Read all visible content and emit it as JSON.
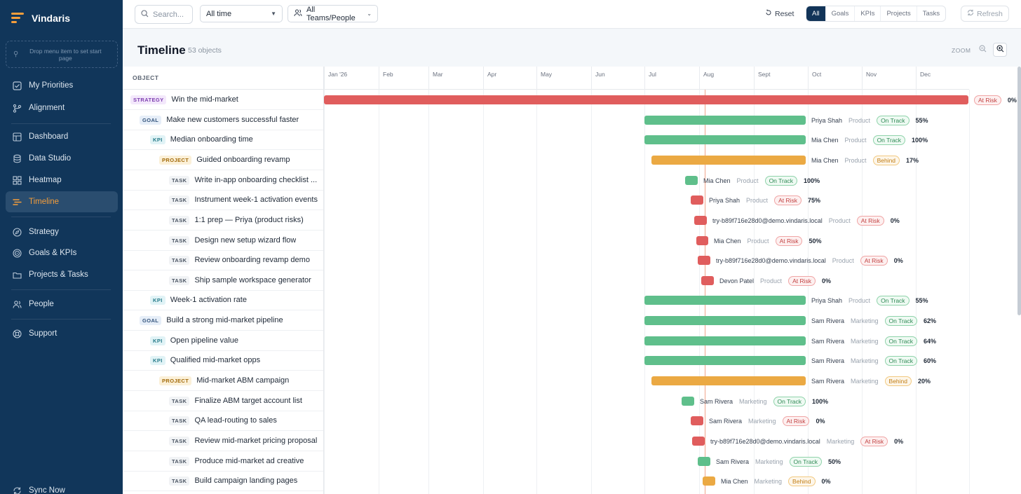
{
  "app": {
    "name": "Vindaris"
  },
  "sidebar": {
    "dropzone_text": "Drop menu item to set start page",
    "items": [
      {
        "label": "My Priorities",
        "icon": "checkbox-icon"
      },
      {
        "label": "Alignment",
        "icon": "branch-icon"
      },
      {
        "label": "Dashboard",
        "icon": "dashboard-icon"
      },
      {
        "label": "Data Studio",
        "icon": "database-icon"
      },
      {
        "label": "Heatmap",
        "icon": "grid-icon"
      },
      {
        "label": "Timeline",
        "icon": "timeline-icon"
      },
      {
        "label": "Strategy",
        "icon": "compass-icon"
      },
      {
        "label": "Goals & KPIs",
        "icon": "target-icon"
      },
      {
        "label": "Projects & Tasks",
        "icon": "folder-icon"
      },
      {
        "label": "People",
        "icon": "people-icon"
      },
      {
        "label": "Support",
        "icon": "support-icon"
      }
    ],
    "sync_label": "Sync Now"
  },
  "toolbar": {
    "search_placeholder": "Search...",
    "time_filter": "All time",
    "team_filter": "All Teams/People",
    "reset_label": "Reset",
    "filters": [
      "All",
      "Goals",
      "KPIs",
      "Projects",
      "Tasks"
    ],
    "active_filter": "All",
    "refresh_label": "Refresh"
  },
  "header": {
    "title": "Timeline",
    "count": "53 objects",
    "zoom_label": "ZOOM"
  },
  "table": {
    "object_header": "OBJECT",
    "months": [
      "Jan '26",
      "Feb",
      "Mar",
      "Apr",
      "May",
      "Jun",
      "Jul",
      "Aug",
      "Sept",
      "Oct",
      "Nov",
      "Dec"
    ],
    "rows": [
      {
        "type": "STRATEGY",
        "label": "Win the mid-market",
        "owner": "",
        "team": "",
        "status": "At Risk",
        "pct": "0%"
      },
      {
        "type": "GOAL",
        "label": "Make new customers successful faster",
        "owner": "Priya Shah",
        "team": "Product",
        "status": "On Track",
        "pct": "55%"
      },
      {
        "type": "KPI",
        "label": "Median onboarding time",
        "owner": "Mia Chen",
        "team": "Product",
        "status": "On Track",
        "pct": "100%"
      },
      {
        "type": "PROJECT",
        "label": "Guided onboarding revamp",
        "owner": "Mia Chen",
        "team": "Product",
        "status": "Behind",
        "pct": "17%"
      },
      {
        "type": "TASK",
        "label": "Write in-app onboarding checklist ...",
        "owner": "Mia Chen",
        "team": "Product",
        "status": "On Track",
        "pct": "100%"
      },
      {
        "type": "TASK",
        "label": "Instrument week-1 activation events",
        "owner": "Priya Shah",
        "team": "Product",
        "status": "At Risk",
        "pct": "75%"
      },
      {
        "type": "TASK",
        "label": "1:1 prep — Priya (product risks)",
        "owner": "try-b89f716e28d0@demo.vindaris.local",
        "team": "Product",
        "status": "At Risk",
        "pct": "0%"
      },
      {
        "type": "TASK",
        "label": "Design new setup wizard flow",
        "owner": "Mia Chen",
        "team": "Product",
        "status": "At Risk",
        "pct": "50%"
      },
      {
        "type": "TASK",
        "label": "Review onboarding revamp demo",
        "owner": "try-b89f716e28d0@demo.vindaris.local",
        "team": "Product",
        "status": "At Risk",
        "pct": "0%"
      },
      {
        "type": "TASK",
        "label": "Ship sample workspace generator",
        "owner": "Devon Patel",
        "team": "Product",
        "status": "At Risk",
        "pct": "0%"
      },
      {
        "type": "KPI",
        "label": "Week-1 activation rate",
        "owner": "Priya Shah",
        "team": "Product",
        "status": "On Track",
        "pct": "55%"
      },
      {
        "type": "GOAL",
        "label": "Build a strong mid-market pipeline",
        "owner": "Sam Rivera",
        "team": "Marketing",
        "status": "On Track",
        "pct": "62%"
      },
      {
        "type": "KPI",
        "label": "Open pipeline value",
        "owner": "Sam Rivera",
        "team": "Marketing",
        "status": "On Track",
        "pct": "64%"
      },
      {
        "type": "KPI",
        "label": "Qualified mid-market opps",
        "owner": "Sam Rivera",
        "team": "Marketing",
        "status": "On Track",
        "pct": "60%"
      },
      {
        "type": "PROJECT",
        "label": "Mid-market ABM campaign",
        "owner": "Sam Rivera",
        "team": "Marketing",
        "status": "Behind",
        "pct": "20%"
      },
      {
        "type": "TASK",
        "label": "Finalize ABM target account list",
        "owner": "Sam Rivera",
        "team": "Marketing",
        "status": "On Track",
        "pct": "100%"
      },
      {
        "type": "TASK",
        "label": "QA lead-routing to sales",
        "owner": "Sam Rivera",
        "team": "Marketing",
        "status": "At Risk",
        "pct": "0%"
      },
      {
        "type": "TASK",
        "label": "Review mid-market pricing proposal",
        "owner": "try-b89f716e28d0@demo.vindaris.local",
        "team": "Marketing",
        "status": "At Risk",
        "pct": "0%"
      },
      {
        "type": "TASK",
        "label": "Produce mid-market ad creative",
        "owner": "Sam Rivera",
        "team": "Marketing",
        "status": "On Track",
        "pct": "50%"
      },
      {
        "type": "TASK",
        "label": "Build campaign landing pages",
        "owner": "Mia Chen",
        "team": "Marketing",
        "status": "Behind",
        "pct": "0%"
      }
    ]
  },
  "colors": {
    "sidebar_bg": "#11365a",
    "accent": "#f59e3b",
    "on_track": "#5fbf8b",
    "at_risk": "#e05d5d",
    "behind": "#eba943"
  }
}
